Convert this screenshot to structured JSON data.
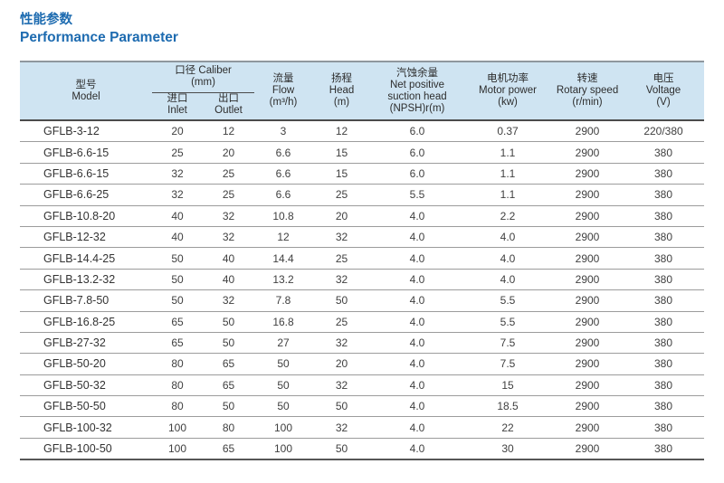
{
  "title": {
    "cn": "性能参数",
    "en": "Performance Parameter"
  },
  "colors": {
    "title_blue": "#1d6bb0",
    "header_background": "#cfe4f2",
    "table_top_border": "#8f979e",
    "dark_border": "#4b4b4b",
    "row_separator": "#9c9c9c",
    "body_text": "#404040"
  },
  "table": {
    "header": {
      "model": {
        "cn": "型号",
        "en": "Model"
      },
      "caliber": {
        "cn": "口径",
        "en": "Caliber",
        "unit": "(mm)"
      },
      "inlet": {
        "cn": "进口",
        "en": "Inlet"
      },
      "outlet": {
        "cn": "出口",
        "en": "Outlet"
      },
      "flow": {
        "cn": "流量",
        "en": "Flow",
        "unit": "(m³/h)"
      },
      "head": {
        "cn": "扬程",
        "en": "Head",
        "unit": "(m)"
      },
      "npsh": {
        "cn": "汽蚀余量",
        "en1": "Net positive",
        "en2": "suction head",
        "unit": "(NPSH)r(m)"
      },
      "motor_power": {
        "cn": "电机功率",
        "en": "Motor power",
        "unit": "(kw)"
      },
      "rotary_speed": {
        "cn": "转速",
        "en": "Rotary speed",
        "unit": "(r/min)"
      },
      "voltage": {
        "cn": "电压",
        "en": "Voltage",
        "unit": "(V)"
      }
    },
    "rows": [
      [
        "GFLB-3-12",
        "20",
        "12",
        "3",
        "12",
        "6.0",
        "0.37",
        "2900",
        "220/380"
      ],
      [
        "GFLB-6.6-15",
        "25",
        "20",
        "6.6",
        "15",
        "6.0",
        "1.1",
        "2900",
        "380"
      ],
      [
        "GFLB-6.6-15",
        "32",
        "25",
        "6.6",
        "15",
        "6.0",
        "1.1",
        "2900",
        "380"
      ],
      [
        "GFLB-6.6-25",
        "32",
        "25",
        "6.6",
        "25",
        "5.5",
        "1.1",
        "2900",
        "380"
      ],
      [
        "GFLB-10.8-20",
        "40",
        "32",
        "10.8",
        "20",
        "4.0",
        "2.2",
        "2900",
        "380"
      ],
      [
        "GFLB-12-32",
        "40",
        "32",
        "12",
        "32",
        "4.0",
        "4.0",
        "2900",
        "380"
      ],
      [
        "GFLB-14.4-25",
        "50",
        "40",
        "14.4",
        "25",
        "4.0",
        "4.0",
        "2900",
        "380"
      ],
      [
        "GFLB-13.2-32",
        "50",
        "40",
        "13.2",
        "32",
        "4.0",
        "4.0",
        "2900",
        "380"
      ],
      [
        "GFLB-7.8-50",
        "50",
        "32",
        "7.8",
        "50",
        "4.0",
        "5.5",
        "2900",
        "380"
      ],
      [
        "GFLB-16.8-25",
        "65",
        "50",
        "16.8",
        "25",
        "4.0",
        "5.5",
        "2900",
        "380"
      ],
      [
        "GFLB-27-32",
        "65",
        "50",
        "27",
        "32",
        "4.0",
        "7.5",
        "2900",
        "380"
      ],
      [
        "GFLB-50-20",
        "80",
        "65",
        "50",
        "20",
        "4.0",
        "7.5",
        "2900",
        "380"
      ],
      [
        "GFLB-50-32",
        "80",
        "65",
        "50",
        "32",
        "4.0",
        "15",
        "2900",
        "380"
      ],
      [
        "GFLB-50-50",
        "80",
        "50",
        "50",
        "50",
        "4.0",
        "18.5",
        "2900",
        "380"
      ],
      [
        "GFLB-100-32",
        "100",
        "80",
        "100",
        "32",
        "4.0",
        "22",
        "2900",
        "380"
      ],
      [
        "GFLB-100-50",
        "100",
        "65",
        "100",
        "50",
        "4.0",
        "30",
        "2900",
        "380"
      ]
    ]
  }
}
